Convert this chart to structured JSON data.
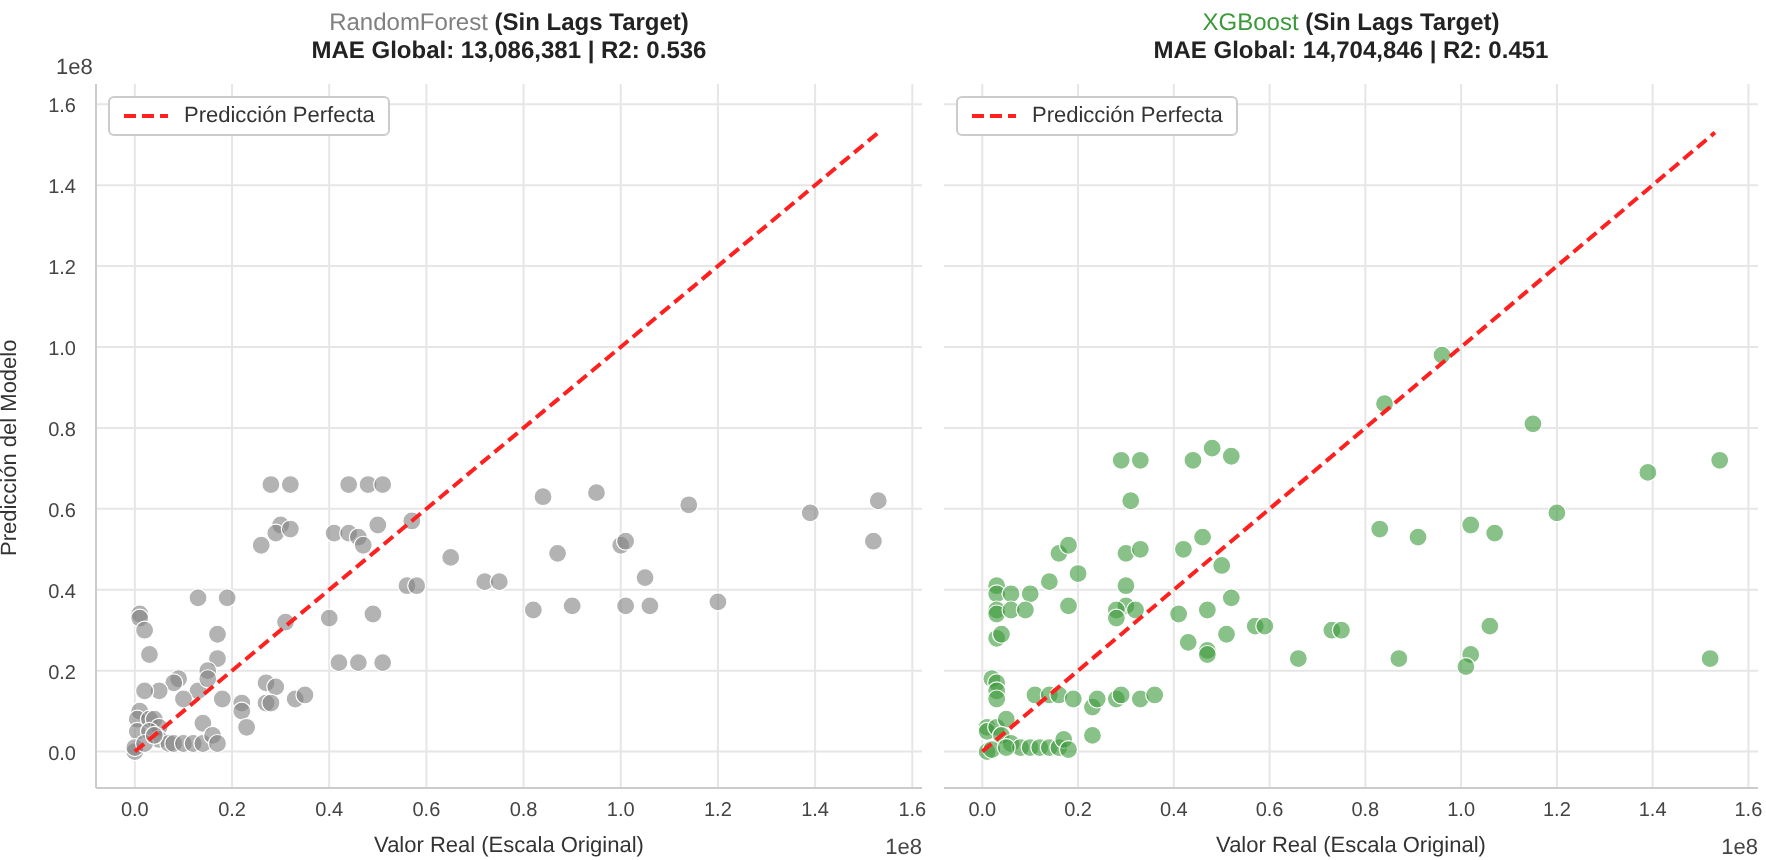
{
  "chart_data": [
    {
      "type": "scatter",
      "title": "RandomForest (Sin Lags Target)",
      "subtitle": "MAE Global: 13,086,381 | R2: 0.536",
      "xlabel": "Valor Real (Escala Original)",
      "ylabel": "Predicción del Modelo",
      "annotations": [
        "1e8",
        "1e8"
      ],
      "grid": true,
      "legend": "top left",
      "marker": "circle",
      "xlim": [
        -0.08,
        1.62
      ],
      "ylim": [
        -0.09,
        1.65
      ],
      "xticks": [
        {
          "value": 0,
          "label": "0.0"
        },
        {
          "value": 0.2,
          "label": "0.2"
        },
        {
          "value": 0.4,
          "label": "0.4"
        },
        {
          "value": 0.6,
          "label": "0.6"
        },
        {
          "value": 0.8,
          "label": "0.8"
        },
        {
          "value": 1,
          "label": "1.0"
        },
        {
          "value": 1.2,
          "label": "1.2"
        },
        {
          "value": 1.4,
          "label": "1.4"
        },
        {
          "value": 1.6,
          "label": "1.6"
        }
      ],
      "yticks": [
        {
          "value": 0,
          "label": "0.0"
        },
        {
          "value": 0.2,
          "label": "0.2"
        },
        {
          "value": 0.4,
          "label": "0.4"
        },
        {
          "value": 0.6,
          "label": "0.6"
        },
        {
          "value": 0.8,
          "label": "0.8"
        },
        {
          "value": 1,
          "label": "1.0"
        },
        {
          "value": 1.2,
          "label": "1.2"
        },
        {
          "value": 1.4,
          "label": "1.4"
        },
        {
          "value": 1.6,
          "label": "1.6"
        }
      ],
      "series": [
        {
          "color": "#808080",
          "x": [
            0.28,
            0.32,
            0.44,
            0.48,
            0.51,
            0.3,
            0.29,
            0.32,
            0.26,
            0.41,
            0.44,
            0.46,
            0.47,
            0.5,
            0.57,
            0.65,
            0.56,
            0.58,
            0.13,
            0.19,
            0.01,
            0.01,
            0.02,
            0.17,
            0.31,
            0.4,
            0.49,
            0.03,
            0.17,
            0.15,
            0.09,
            0.08,
            0.05,
            0.02,
            0.13,
            0.15,
            0.27,
            0.29,
            0.42,
            0.46,
            0.51,
            0.1,
            0.18,
            0.22,
            0.22,
            0.23,
            0.27,
            0.28,
            0.33,
            0.35,
            0.14,
            0.01,
            0.005,
            0.005,
            0.03,
            0.04,
            0.05,
            0.03,
            0.05,
            0.07,
            0.08,
            0.1,
            0.12,
            0.14,
            0.16,
            0.17,
            0.0,
            0.0,
            0.02,
            0.04,
            0.84,
            0.95,
            1.14,
            1.39,
            1.53,
            1.52,
            0.72,
            0.75,
            0.87,
            1.0,
            1.01,
            1.05,
            0.82,
            0.9,
            1.01,
            1.06,
            1.2
          ],
          "values": [
            0.66,
            0.66,
            0.66,
            0.66,
            0.66,
            0.56,
            0.54,
            0.55,
            0.51,
            0.54,
            0.54,
            0.53,
            0.51,
            0.56,
            0.57,
            0.48,
            0.41,
            0.41,
            0.38,
            0.38,
            0.34,
            0.33,
            0.3,
            0.29,
            0.32,
            0.33,
            0.34,
            0.24,
            0.23,
            0.2,
            0.18,
            0.17,
            0.15,
            0.15,
            0.15,
            0.18,
            0.17,
            0.16,
            0.22,
            0.22,
            0.22,
            0.13,
            0.13,
            0.12,
            0.1,
            0.06,
            0.12,
            0.12,
            0.13,
            0.14,
            0.07,
            0.1,
            0.08,
            0.05,
            0.08,
            0.08,
            0.06,
            0.05,
            0.03,
            0.02,
            0.02,
            0.02,
            0.02,
            0.02,
            0.04,
            0.02,
            0.0,
            0.01,
            0.02,
            0.04,
            0.63,
            0.64,
            0.61,
            0.59,
            0.62,
            0.52,
            0.42,
            0.42,
            0.49,
            0.51,
            0.52,
            0.43,
            0.35,
            0.36,
            0.36,
            0.36,
            0.37
          ]
        },
        {
          "type": "line",
          "name": "Predicción Perfecta",
          "color": "#ff2020",
          "line_style": "dashed",
          "marker": "none",
          "x": [
            0,
            1.53
          ],
          "values": [
            0,
            1.53
          ]
        }
      ]
    },
    {
      "type": "scatter",
      "title": "XGBoost (Sin Lags Target)",
      "subtitle": "MAE Global: 14,704,846 | R2: 0.451",
      "xlabel": "Valor Real (Escala Original)",
      "annotations": [
        "1e8"
      ],
      "grid": true,
      "legend": "top left",
      "marker": "circle",
      "tick_labels": "x",
      "xlim": [
        -0.08,
        1.62
      ],
      "ylim": [
        -0.09,
        1.65
      ],
      "xticks": [
        {
          "value": 0,
          "label": "0.0"
        },
        {
          "value": 0.2,
          "label": "0.2"
        },
        {
          "value": 0.4,
          "label": "0.4"
        },
        {
          "value": 0.6,
          "label": "0.6"
        },
        {
          "value": 0.8,
          "label": "0.8"
        },
        {
          "value": 1,
          "label": "1.0"
        },
        {
          "value": 1.2,
          "label": "1.2"
        },
        {
          "value": 1.4,
          "label": "1.4"
        },
        {
          "value": 1.6,
          "label": "1.6"
        }
      ],
      "yticks": [
        0,
        0.2,
        0.4,
        0.6,
        0.8,
        1,
        1.2,
        1.4,
        1.6
      ],
      "series": [
        {
          "color": "#3a9a3a",
          "x": [
            0.29,
            0.33,
            0.44,
            0.48,
            0.52,
            0.31,
            0.3,
            0.33,
            0.42,
            0.46,
            0.5,
            0.16,
            0.18,
            0.2,
            0.14,
            0.1,
            0.03,
            0.03,
            0.06,
            0.03,
            0.03,
            0.06,
            0.09,
            0.18,
            0.3,
            0.3,
            0.28,
            0.28,
            0.32,
            0.41,
            0.47,
            0.52,
            0.43,
            0.47,
            0.47,
            0.51,
            0.57,
            0.59,
            0.66,
            0.03,
            0.04,
            0.02,
            0.03,
            0.03,
            0.03,
            0.11,
            0.14,
            0.16,
            0.19,
            0.23,
            0.24,
            0.23,
            0.28,
            0.29,
            0.33,
            0.36,
            0.01,
            0.01,
            0.03,
            0.05,
            0.04,
            0.06,
            0.08,
            0.1,
            0.12,
            0.14,
            0.16,
            0.17,
            0.18,
            0.01,
            0.02,
            0.05,
            0.96,
            0.84,
            1.15,
            1.39,
            1.54,
            1.2,
            0.83,
            0.91,
            1.02,
            1.07,
            0.73,
            0.75,
            1.06,
            0.87,
            1.02,
            1.01,
            1.52
          ],
          "values": [
            0.72,
            0.72,
            0.72,
            0.75,
            0.73,
            0.62,
            0.49,
            0.5,
            0.5,
            0.53,
            0.46,
            0.49,
            0.51,
            0.44,
            0.42,
            0.39,
            0.41,
            0.39,
            0.39,
            0.35,
            0.34,
            0.35,
            0.35,
            0.36,
            0.41,
            0.36,
            0.35,
            0.33,
            0.35,
            0.34,
            0.35,
            0.38,
            0.27,
            0.25,
            0.24,
            0.29,
            0.31,
            0.31,
            0.23,
            0.28,
            0.29,
            0.18,
            0.17,
            0.15,
            0.13,
            0.14,
            0.14,
            0.14,
            0.13,
            0.11,
            0.13,
            0.04,
            0.13,
            0.14,
            0.13,
            0.14,
            0.06,
            0.05,
            0.06,
            0.08,
            0.04,
            0.02,
            0.01,
            0.01,
            0.01,
            0.01,
            0.01,
            0.03,
            0.005,
            0.0,
            0.005,
            0.01,
            0.98,
            0.86,
            0.81,
            0.69,
            0.72,
            0.59,
            0.55,
            0.53,
            0.56,
            0.54,
            0.3,
            0.3,
            0.31,
            0.23,
            0.24,
            0.21,
            0.23
          ]
        },
        {
          "type": "line",
          "name": "Predicción Perfecta",
          "color": "#ff2020",
          "line_style": "dashed",
          "marker": "none",
          "x": [
            0,
            1.53
          ],
          "values": [
            0,
            1.53
          ]
        }
      ]
    }
  ]
}
